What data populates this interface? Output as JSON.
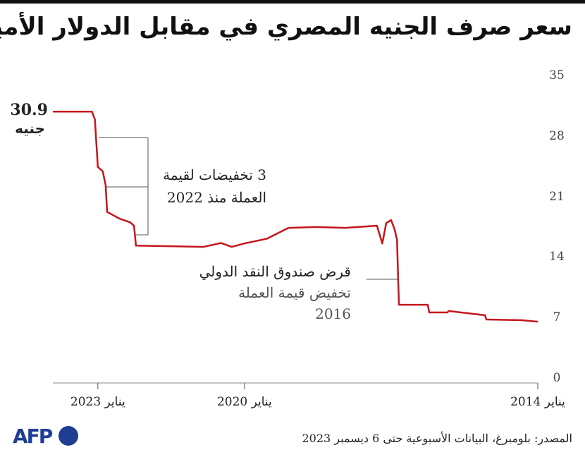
{
  "chart_data": {
    "type": "line",
    "title": "سعر صرف الجنيه المصري في مقابل الدولار الأميركي",
    "source": "المصدر: بلومبرغ، البيانات الأسبوعية حتى 6 ديسمبر 2023",
    "logo": "AFP",
    "start_label": {
      "value": "30.9",
      "unit": "جنيه"
    },
    "annotations": [
      {
        "lines": [
          "3 تخفيضات لقيمة",
          "العملة منذ 2022"
        ]
      },
      {
        "lines": [
          "قرض صندوق النقد الدولي",
          "تخفيض قيمة العملة",
          "2016"
        ]
      }
    ],
    "x": [
      2023.92,
      2023.12,
      2023.06,
      2023.0,
      2022.9,
      2022.84,
      2022.81,
      2022.55,
      2022.34,
      2022.26,
      2022.22,
      2021.25,
      2020.84,
      2020.48,
      2020.26,
      2020.0,
      2019.54,
      2019.1,
      2018.53,
      2017.94,
      2017.29,
      2017.18,
      2017.1,
      2017.0,
      2016.93,
      2016.88,
      2016.84,
      2016.5,
      2016.25,
      2016.22,
      2015.85,
      2015.82,
      2015.08,
      2015.05,
      2014.33,
      2014.0
    ],
    "series": [
      {
        "color": "#c4161c",
        "values": [
          30.9,
          30.9,
          30.0,
          24.5,
          24.0,
          22.4,
          19.3,
          18.5,
          18.1,
          17.7,
          15.4,
          15.3,
          15.25,
          15.7,
          15.25,
          15.65,
          16.2,
          17.45,
          17.55,
          17.45,
          17.7,
          15.65,
          18.0,
          18.35,
          17.3,
          16.1,
          8.56,
          8.56,
          8.56,
          7.67,
          7.67,
          7.83,
          7.34,
          6.85,
          6.77,
          6.6
        ]
      }
    ],
    "xlim": [
      2023.92,
      2014.0
    ],
    "xticks": [
      {
        "value": 2023,
        "label": "يناير 2023"
      },
      {
        "value": 2020,
        "label": "يناير 2020"
      },
      {
        "value": 2014,
        "label": "يناير 2014"
      }
    ],
    "ylim": [
      0,
      35
    ],
    "yticks": [
      0,
      7,
      14,
      21,
      28,
      35
    ],
    "grid": false
  }
}
